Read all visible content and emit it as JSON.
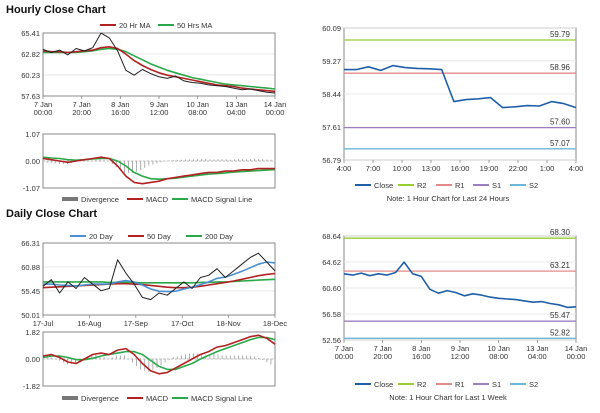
{
  "hourly_title": "Hourly Close Chart",
  "daily_title": "Daily Close Chart",
  "chart_data": [
    {
      "id": "hourly-price",
      "type": "line",
      "x_ticks": [
        "7 Jan\n00:00",
        "7 Jan\n20:00",
        "8 Jan\n16:00",
        "9 Jan\n12:00",
        "10 Jan\n08:00",
        "13 Jan\n04:00",
        "14 Jan\n00:00"
      ],
      "y_ticks": [
        "65.41",
        "62.82",
        "60.23",
        "57.63"
      ],
      "ylim": [
        57.63,
        65.41
      ],
      "legend": [
        "20 Hr MA",
        "50 Hrs MA"
      ],
      "series": [
        {
          "name": "Close",
          "color": "#222222",
          "values": [
            63.4,
            63.0,
            63.3,
            62.7,
            63.5,
            63.2,
            63.6,
            65.4,
            64.8,
            63.2,
            60.8,
            60.2,
            60.9,
            60.4,
            60.0,
            59.8,
            60.1,
            59.5,
            59.3,
            59.2,
            59.0,
            58.9,
            58.8,
            58.6,
            58.4,
            58.5,
            58.3,
            58.1,
            58.0
          ]
        },
        {
          "name": "20 Hr MA",
          "color": "#b22222",
          "values": [
            63.2,
            63.1,
            63.1,
            63.0,
            63.1,
            63.2,
            63.3,
            63.6,
            63.7,
            63.5,
            62.8,
            62.0,
            61.4,
            60.9,
            60.5,
            60.2,
            60.0,
            59.8,
            59.6,
            59.4,
            59.2,
            59.0,
            58.9,
            58.8,
            58.6,
            58.5,
            58.4,
            58.3,
            58.2
          ]
        },
        {
          "name": "50 Hrs MA",
          "color": "#2aa84a",
          "values": [
            63.0,
            63.0,
            63.0,
            63.0,
            63.0,
            63.1,
            63.2,
            63.4,
            63.5,
            63.4,
            63.1,
            62.6,
            62.1,
            61.6,
            61.2,
            60.8,
            60.5,
            60.2,
            59.9,
            59.7,
            59.5,
            59.3,
            59.1,
            59.0,
            58.9,
            58.8,
            58.7,
            58.6,
            58.5
          ]
        }
      ]
    },
    {
      "id": "hourly-macd",
      "type": "line",
      "y_ticks": [
        "1.07",
        "0.00",
        "-1.07"
      ],
      "ylim": [
        -1.07,
        1.07
      ],
      "legend": [
        "Divergence",
        "MACD",
        "MACD Signal Line"
      ],
      "series": [
        {
          "name": "MACD",
          "color": "#b22222",
          "values": [
            0.1,
            0.05,
            0.0,
            -0.05,
            0.0,
            0.05,
            0.1,
            0.15,
            0.1,
            -0.2,
            -0.6,
            -0.85,
            -0.9,
            -0.85,
            -0.8,
            -0.7,
            -0.65,
            -0.6,
            -0.55,
            -0.5,
            -0.45,
            -0.45,
            -0.4,
            -0.4,
            -0.35,
            -0.35,
            -0.3,
            -0.3,
            -0.3
          ]
        },
        {
          "name": "MACD Signal Line",
          "color": "#2aa84a",
          "values": [
            0.15,
            0.12,
            0.1,
            0.05,
            0.03,
            0.05,
            0.08,
            0.1,
            0.1,
            0.0,
            -0.2,
            -0.45,
            -0.6,
            -0.7,
            -0.72,
            -0.7,
            -0.68,
            -0.64,
            -0.6,
            -0.56,
            -0.52,
            -0.5,
            -0.47,
            -0.44,
            -0.42,
            -0.4,
            -0.38,
            -0.36,
            -0.34
          ]
        }
      ]
    },
    {
      "id": "hourly-24h",
      "type": "line",
      "x_ticks": [
        "4:00",
        "7:00",
        "10:00",
        "13:00",
        "16:00",
        "19:00",
        "22:00",
        "1:00",
        "4:00"
      ],
      "y_ticks": [
        "60.09",
        "59.27",
        "58.44",
        "57.61",
        "56.79"
      ],
      "ylim": [
        56.79,
        60.09
      ],
      "levels": [
        {
          "name": "R2",
          "value": 59.79,
          "label": "59.79",
          "color": "#9acd32"
        },
        {
          "name": "R1",
          "value": 58.96,
          "label": "58.96",
          "color": "#e58a8a"
        },
        {
          "name": "S1",
          "value": 57.6,
          "label": "57.60",
          "color": "#9b7fc0"
        },
        {
          "name": "S2",
          "value": 57.07,
          "label": "57.07",
          "color": "#6bb8d8"
        }
      ],
      "legend": [
        "Close",
        "R2",
        "R1",
        "S1",
        "S2"
      ],
      "note": "Note: 1 Hour Chart for Last 24 Hours",
      "series": [
        {
          "name": "Close",
          "color": "#1f5fa8",
          "values": [
            59.05,
            59.05,
            59.12,
            59.03,
            59.15,
            59.1,
            59.08,
            59.07,
            59.05,
            58.25,
            58.3,
            58.32,
            58.35,
            58.1,
            58.12,
            58.15,
            58.14,
            58.25,
            58.2,
            58.1
          ]
        }
      ]
    },
    {
      "id": "daily-price",
      "type": "line",
      "x_ticks": [
        "17-Jul",
        "16-Aug",
        "17-Sep",
        "17-Oct",
        "18-Nov",
        "18-Dec"
      ],
      "y_ticks": [
        "66.31",
        "60.88",
        "55.45",
        "50.01"
      ],
      "ylim": [
        50.01,
        66.31
      ],
      "legend": [
        "20 Day",
        "50 Day",
        "200 Day"
      ],
      "series": [
        {
          "name": "Close",
          "color": "#222222",
          "values": [
            56.5,
            58.0,
            55.0,
            57.5,
            56.0,
            58.5,
            57.0,
            55.5,
            56.0,
            62.5,
            59.5,
            57.0,
            54.0,
            53.5,
            55.0,
            54.5,
            56.0,
            57.5,
            56.0,
            58.5,
            59.0,
            60.5,
            58.5,
            60.0,
            61.5,
            63.0,
            64.0,
            62.0,
            60.0
          ]
        },
        {
          "name": "20 Day",
          "color": "#4a8fd1",
          "values": [
            57.0,
            57.0,
            56.8,
            56.7,
            56.6,
            56.8,
            57.0,
            57.0,
            57.0,
            57.5,
            57.8,
            57.5,
            56.8,
            55.9,
            55.4,
            55.3,
            55.4,
            55.9,
            56.3,
            56.9,
            57.5,
            58.3,
            58.6,
            59.2,
            59.9,
            60.7,
            61.5,
            62.0,
            61.8
          ]
        },
        {
          "name": "50 Day",
          "color": "#b22222",
          "values": [
            56.2,
            56.3,
            56.4,
            56.5,
            56.6,
            56.7,
            56.8,
            56.9,
            57.0,
            57.1,
            57.1,
            57.0,
            56.9,
            56.7,
            56.5,
            56.3,
            56.2,
            56.2,
            56.3,
            56.5,
            56.8,
            57.1,
            57.4,
            57.7,
            58.1,
            58.5,
            58.9,
            59.2,
            59.4
          ]
        },
        {
          "name": "200 Day",
          "color": "#2aa84a",
          "values": [
            57.5,
            57.5,
            57.5,
            57.5,
            57.5,
            57.5,
            57.5,
            57.5,
            57.4,
            57.4,
            57.4,
            57.4,
            57.3,
            57.3,
            57.3,
            57.3,
            57.3,
            57.3,
            57.3,
            57.4,
            57.4,
            57.5,
            57.5,
            57.6,
            57.7,
            57.8,
            57.9,
            58.0,
            58.1
          ]
        }
      ]
    },
    {
      "id": "daily-macd",
      "type": "line",
      "y_ticks": [
        "1.82",
        "0.00",
        "-1.82"
      ],
      "ylim": [
        -1.82,
        1.82
      ],
      "legend": [
        "Divergence",
        "MACD",
        "MACD Signal Line"
      ],
      "series": [
        {
          "name": "MACD",
          "color": "#b22222",
          "values": [
            0.2,
            0.3,
            0.1,
            -0.2,
            -0.3,
            0.0,
            0.3,
            0.4,
            0.3,
            0.6,
            0.7,
            0.3,
            -0.3,
            -0.8,
            -1.0,
            -0.9,
            -0.6,
            -0.3,
            0.0,
            0.3,
            0.5,
            0.8,
            0.9,
            1.1,
            1.3,
            1.5,
            1.6,
            1.4,
            1.0
          ]
        },
        {
          "name": "MACD Signal Line",
          "color": "#2aa84a",
          "values": [
            0.1,
            0.2,
            0.2,
            0.1,
            -0.05,
            -0.05,
            0.05,
            0.2,
            0.3,
            0.4,
            0.5,
            0.5,
            0.3,
            -0.1,
            -0.5,
            -0.7,
            -0.7,
            -0.5,
            -0.3,
            0.0,
            0.25,
            0.5,
            0.7,
            0.9,
            1.1,
            1.3,
            1.45,
            1.45,
            1.3
          ]
        }
      ]
    },
    {
      "id": "daily-week",
      "type": "line",
      "x_ticks": [
        "7 Jan\n00:00",
        "7 Jan\n20:00",
        "8 Jan\n16:00",
        "9 Jan\n12:00",
        "10 Jan\n08:00",
        "13 Jan\n04:00",
        "14 Jan\n00:00"
      ],
      "y_ticks": [
        "68.64",
        "64.62",
        "60.60",
        "56.58",
        "52.56"
      ],
      "ylim": [
        52.56,
        68.64
      ],
      "levels": [
        {
          "name": "R2",
          "value": 68.3,
          "label": "68.30",
          "color": "#9acd32"
        },
        {
          "name": "R1",
          "value": 63.21,
          "label": "63.21",
          "color": "#e58a8a"
        },
        {
          "name": "S1",
          "value": 55.47,
          "label": "55.47",
          "color": "#9b7fc0"
        },
        {
          "name": "S2",
          "value": 52.82,
          "label": "52.82",
          "color": "#6bb8d8"
        }
      ],
      "legend": [
        "Close",
        "R2",
        "R1",
        "S1",
        "S2"
      ],
      "note": "Note: 1 Hour Chart for Last 1 Week",
      "series": [
        {
          "name": "Close",
          "color": "#1f5fa8",
          "values": [
            62.8,
            62.6,
            62.9,
            62.5,
            62.8,
            62.6,
            63.0,
            64.6,
            62.8,
            62.4,
            60.4,
            59.8,
            60.2,
            59.9,
            59.4,
            59.7,
            59.5,
            59.2,
            59.0,
            58.9,
            58.8,
            58.6,
            58.4,
            58.5,
            58.2,
            58.0,
            57.6,
            57.7
          ]
        }
      ]
    }
  ]
}
